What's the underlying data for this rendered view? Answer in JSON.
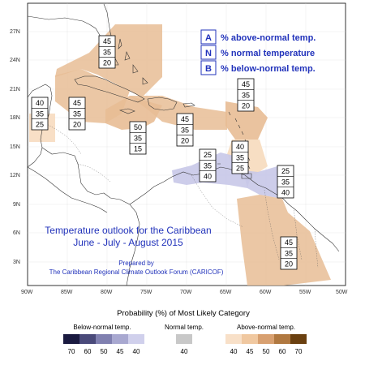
{
  "map": {
    "lat_ticks": [
      "27N",
      "24N",
      "21N",
      "18N",
      "15N",
      "12N",
      "9N",
      "6N",
      "3N"
    ],
    "lon_ticks": [
      "90W",
      "85W",
      "80W",
      "75W",
      "70W",
      "65W",
      "60W",
      "55W",
      "50W"
    ],
    "title_line1": "Temperature outlook for the Caribbean",
    "title_line2": "June - July - August 2015",
    "prepared_by": "Prepared by",
    "forum": "The Caribbean Regional Climate Outlook Forum (CARICOF)",
    "colors": {
      "above_light": "#f7dcc0",
      "above_medium": "#e8bd95",
      "below_medium": "#c8c8e8",
      "land_outline": "#333333"
    }
  },
  "key": {
    "a_letter": "A",
    "a_text": "% above-normal temp.",
    "n_letter": "N",
    "n_text": "% normal temperature",
    "b_letter": "B",
    "b_text": "% below-normal temp."
  },
  "regions": [
    {
      "id": "bahamas",
      "above": "45",
      "normal": "35",
      "below": "20"
    },
    {
      "id": "yucatan",
      "above": "40",
      "normal": "35",
      "below": "25"
    },
    {
      "id": "cayman-cuba",
      "above": "45",
      "normal": "35",
      "below": "20"
    },
    {
      "id": "jamaica-hispaniola",
      "above": "50",
      "normal": "35",
      "below": "15"
    },
    {
      "id": "puerto-rico",
      "above": "45",
      "normal": "35",
      "below": "20"
    },
    {
      "id": "leeward-islands",
      "above": "45",
      "normal": "35",
      "below": "20"
    },
    {
      "id": "windward-islands",
      "above": "40",
      "normal": "35",
      "below": "25"
    },
    {
      "id": "abc-islands",
      "above": "25",
      "normal": "35",
      "below": "40"
    },
    {
      "id": "trinidad-guyana",
      "above": "25",
      "normal": "35",
      "below": "40"
    },
    {
      "id": "guianas",
      "above": "45",
      "normal": "35",
      "below": "20"
    }
  ],
  "scale": {
    "heading": "Probability (%) of Most Likely Category",
    "below_label": "Below-normal temp.",
    "normal_label": "Normal temp.",
    "above_label": "Above-normal temp.",
    "below_values": [
      "70",
      "60",
      "50",
      "45",
      "40"
    ],
    "normal_values": [
      "40"
    ],
    "above_values": [
      "40",
      "45",
      "50",
      "60",
      "70"
    ],
    "below_colors": [
      "#1a1a40",
      "#4a4a7a",
      "#8080b0",
      "#a8a8d0",
      "#d0d0ec"
    ],
    "normal_color": "#c8c8c8",
    "above_colors": [
      "#f8e0c8",
      "#f0c8a0",
      "#d8a070",
      "#b07840",
      "#6a4010"
    ]
  }
}
